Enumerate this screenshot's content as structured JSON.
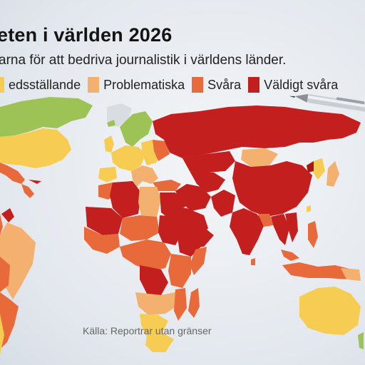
{
  "title": "eten i världen 2026",
  "subtitle": "arna för att bedriva journalistik i världens länder.",
  "legend": [
    {
      "label": "edsställande",
      "color": "#f6cc52"
    },
    {
      "label": "Problematiska",
      "color": "#f3b06f"
    },
    {
      "label": "Svåra",
      "color": "#e86a3a"
    },
    {
      "label": "Väldigt svåra",
      "color": "#c41f1f"
    }
  ],
  "colors": {
    "good": "#9dc356",
    "satisfactory": "#f6cc52",
    "problematic": "#f3b06f",
    "difficult": "#e86a3a",
    "very_serious": "#c41f1f",
    "very_serious_dark": "#a81616"
  },
  "source": "Källa: Reportrar utan gränser",
  "icons": [
    "pen-icon"
  ]
}
